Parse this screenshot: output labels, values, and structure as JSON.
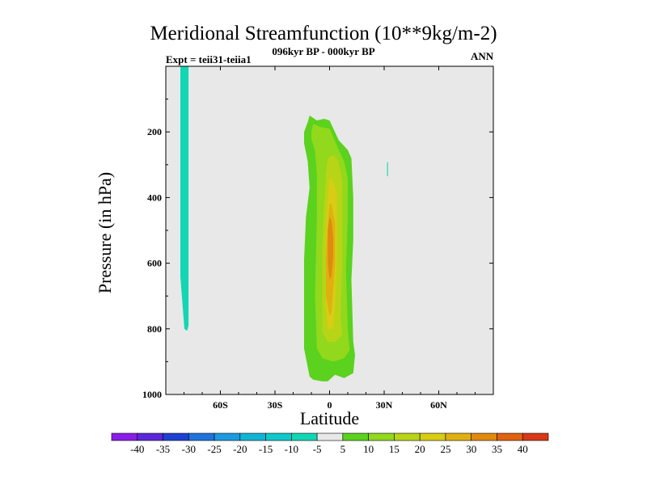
{
  "chart_data": {
    "type": "heatmap",
    "title": "Meridional Streamfunction (10**9kg/m-2)",
    "subtitle": "096kyr BP - 000kyr BP",
    "left_string": "Expt = teii31-teiia1",
    "right_string": "ANN",
    "xlabel": "Latitude",
    "ylabel": "Pressure (in hPa)",
    "xlim": [
      -90,
      90
    ],
    "ylim": [
      1000,
      0
    ],
    "x_ticks": [
      {
        "value": -60,
        "label": "60S"
      },
      {
        "value": -30,
        "label": "30S"
      },
      {
        "value": 0,
        "label": "0"
      },
      {
        "value": 30,
        "label": "30N"
      },
      {
        "value": 60,
        "label": "60N"
      }
    ],
    "y_ticks": [
      {
        "value": 200,
        "label": "200"
      },
      {
        "value": 400,
        "label": "400"
      },
      {
        "value": 600,
        "label": "600"
      },
      {
        "value": 800,
        "label": "800"
      },
      {
        "value": 1000,
        "label": "1000"
      }
    ],
    "missing_color": "#e8e8e8",
    "colorbar": {
      "labels": [
        "-40",
        "-35",
        "-30",
        "-25",
        "-20",
        "-15",
        "-10",
        "-5",
        "5",
        "10",
        "15",
        "20",
        "25",
        "30",
        "35",
        "40"
      ],
      "colors": [
        "#8a1ee8",
        "#5a28d8",
        "#2040d2",
        "#1e74da",
        "#1c9ae0",
        "#10b4d4",
        "#10c8cc",
        "#12d6b4",
        "#e8e8e8",
        "#5ad21e",
        "#92d81c",
        "#b8d416",
        "#d8cc14",
        "#e0b010",
        "#e08a10",
        "#e06210",
        "#d83818"
      ]
    },
    "regions": [
      {
        "color": "#12d6b4",
        "range": "-10 to -5",
        "points": [
          [
            -82,
            0
          ],
          [
            -77.5,
            0
          ],
          [
            -77.5,
            790
          ],
          [
            -78.3,
            806
          ],
          [
            -79.8,
            800
          ],
          [
            -82,
            640
          ],
          [
            -82,
            0
          ]
        ]
      },
      {
        "color": "#12d6b4",
        "range": "-10 to -5",
        "points": [
          [
            31.6,
            292
          ],
          [
            32.1,
            292
          ],
          [
            32.1,
            335
          ],
          [
            31.6,
            335
          ]
        ]
      },
      {
        "color": "#5ad21e",
        "range": "5 to 10",
        "points": [
          [
            -11,
            150
          ],
          [
            -7,
            165
          ],
          [
            -3,
            160
          ],
          [
            0,
            165
          ],
          [
            5,
            225
          ],
          [
            10,
            255
          ],
          [
            12,
            280
          ],
          [
            13,
            400
          ],
          [
            13,
            530
          ],
          [
            12,
            650
          ],
          [
            13,
            840
          ],
          [
            14,
            880
          ],
          [
            13,
            935
          ],
          [
            8,
            950
          ],
          [
            3,
            940
          ],
          [
            -1,
            960
          ],
          [
            -4,
            960
          ],
          [
            -9,
            955
          ],
          [
            -11,
            945
          ],
          [
            -14,
            860
          ],
          [
            -14,
            590
          ],
          [
            -13,
            460
          ],
          [
            -11,
            370
          ],
          [
            -12,
            290
          ],
          [
            -14,
            235
          ],
          [
            -14,
            200
          ],
          [
            -12,
            170
          ]
        ]
      },
      {
        "color": "#92d81c",
        "range": "10 to 15",
        "points": [
          [
            -9,
            175
          ],
          [
            -5,
            185
          ],
          [
            0,
            190
          ],
          [
            2,
            215
          ],
          [
            5,
            255
          ],
          [
            8,
            290
          ],
          [
            10,
            340
          ],
          [
            10,
            460
          ],
          [
            9,
            620
          ],
          [
            10,
            800
          ],
          [
            11,
            865
          ],
          [
            8,
            890
          ],
          [
            2,
            900
          ],
          [
            -4,
            890
          ],
          [
            -7,
            860
          ],
          [
            -8,
            700
          ],
          [
            -7,
            450
          ],
          [
            -7,
            330
          ],
          [
            -8,
            260
          ],
          [
            -10,
            220
          ],
          [
            -10,
            200
          ]
        ]
      },
      {
        "color": "#b8d416",
        "range": "15 to 20",
        "points": [
          [
            -1,
            280
          ],
          [
            2,
            270
          ],
          [
            5,
            290
          ],
          [
            7,
            350
          ],
          [
            7,
            600
          ],
          [
            6,
            760
          ],
          [
            7,
            820
          ],
          [
            3,
            840
          ],
          [
            -1,
            840
          ],
          [
            -4,
            810
          ],
          [
            -4,
            700
          ],
          [
            -4,
            550
          ],
          [
            -3,
            420
          ],
          [
            -2,
            330
          ]
        ]
      },
      {
        "color": "#d8cc14",
        "range": "20 to 25",
        "points": [
          [
            0,
            340
          ],
          [
            2,
            350
          ],
          [
            4,
            390
          ],
          [
            4,
            600
          ],
          [
            3,
            730
          ],
          [
            2,
            800
          ],
          [
            -1,
            800
          ],
          [
            -2,
            720
          ],
          [
            -2,
            520
          ],
          [
            -1,
            400
          ]
        ]
      },
      {
        "color": "#e0b010",
        "range": "25 to 30",
        "points": [
          [
            0,
            420
          ],
          [
            1,
            420
          ],
          [
            3,
            480
          ],
          [
            3,
            600
          ],
          [
            2,
            680
          ],
          [
            1,
            750
          ],
          [
            0,
            760
          ],
          [
            -2,
            700
          ],
          [
            -2,
            580
          ],
          [
            -1,
            480
          ]
        ]
      },
      {
        "color": "#e08a10",
        "range": "30 to 35",
        "points": [
          [
            0,
            460
          ],
          [
            1,
            470
          ],
          [
            2,
            520
          ],
          [
            2,
            580
          ],
          [
            1,
            640
          ],
          [
            0,
            650
          ],
          [
            -1,
            600
          ],
          [
            -1,
            500
          ]
        ]
      }
    ]
  }
}
